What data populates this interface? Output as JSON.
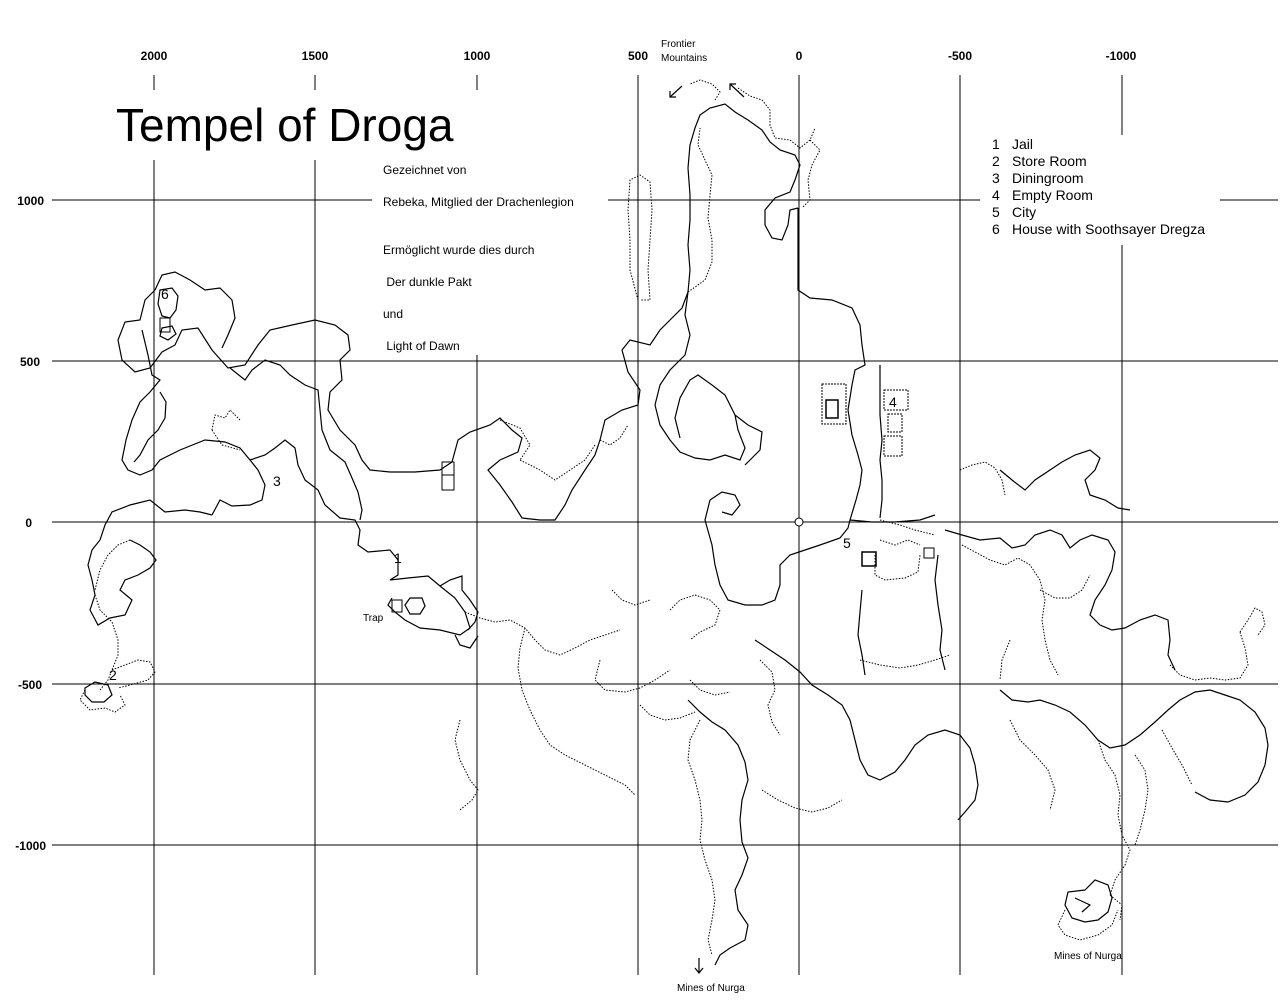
{
  "map": {
    "title": "Tempel of Droga",
    "credits": [
      "Gezeichnet von",
      "Rebeka, Mitglied der Drachenlegion",
      "Ermöglicht wurde dies durch",
      " Der dunkle Pakt",
      "und",
      " Light of Dawn"
    ],
    "x_ticks": [
      "2000",
      "1500",
      "1000",
      "500",
      "0",
      "-500",
      "-1000"
    ],
    "y_ticks": [
      "1000",
      "500",
      "0",
      "-500",
      "-1000"
    ],
    "legend": [
      {
        "num": "1",
        "name": "Jail"
      },
      {
        "num": "2",
        "name": "Store Room"
      },
      {
        "num": "3",
        "name": "Diningroom"
      },
      {
        "num": "4",
        "name": "Empty Room"
      },
      {
        "num": "5",
        "name": "City"
      },
      {
        "num": "6",
        "name": "House with Soothsayer Dregza"
      }
    ],
    "places": {
      "frontier_line1": "Frontier",
      "frontier_line2": "Mountains",
      "mines_south": "Mines of Nurga",
      "mines_southeast": "Mines of Nurga",
      "trap": "Trap"
    },
    "room_markers": [
      "1",
      "2",
      "3",
      "4",
      "5",
      "6"
    ]
  }
}
